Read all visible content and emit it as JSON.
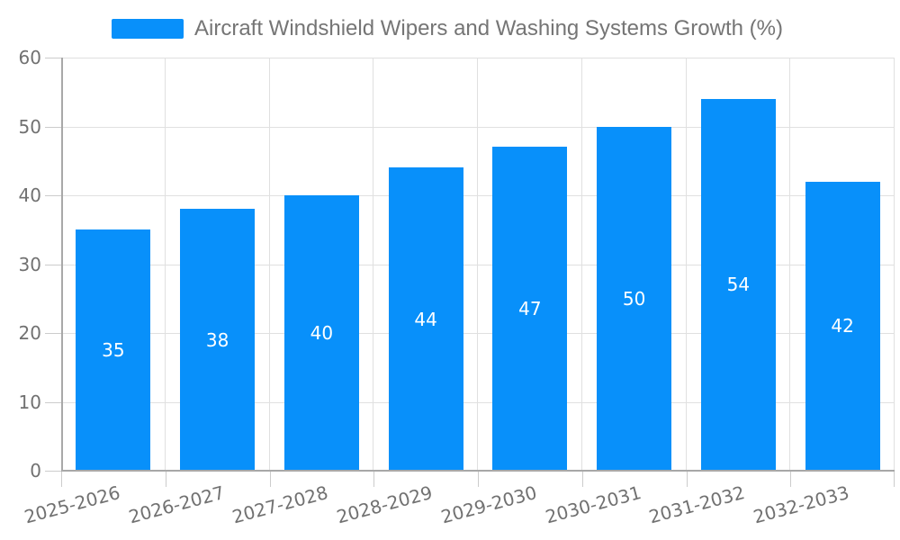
{
  "legend": {
    "label": "Aircraft Windshield Wipers and Washing Systems Growth (%)"
  },
  "chart_data": {
    "type": "bar",
    "title": "Aircraft Windshield Wipers and Washing Systems Growth (%)",
    "categories": [
      "2025-2026",
      "2026-2027",
      "2027-2028",
      "2028-2029",
      "2029-2030",
      "2030-2031",
      "2031-2032",
      "2032-2033"
    ],
    "values": [
      35,
      38,
      40,
      44,
      47,
      50,
      54,
      42
    ],
    "xlabel": "",
    "ylabel": "",
    "ylim": [
      0,
      60
    ],
    "yticks": [
      0,
      10,
      20,
      30,
      40,
      50,
      60
    ],
    "grid": "both",
    "legend_position": "top-center",
    "bar_label_position": "inside-center",
    "x_label_rotation_deg": 15,
    "colors": {
      "bar": "#0890FA",
      "bar_label": "#ffffff",
      "grid_line": "#e0e0e0",
      "tick_line": "#cccccc",
      "axis_line": "#a8a8a8",
      "tick_text": "#717171",
      "legend_text": "#757575",
      "background": "#ffffff"
    }
  }
}
